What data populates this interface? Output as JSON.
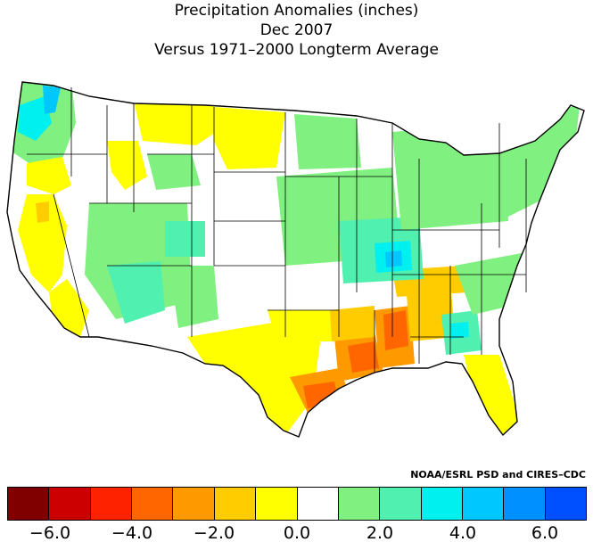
{
  "title": {
    "line1": "Precipitation Anomalies (inches)",
    "line2": "Dec 2007",
    "line3": "Versus 1971–2000 Longterm Average"
  },
  "credit": "NOAA/ESRL PSD and CIRES–CDC",
  "legend": {
    "colors": [
      "#800000",
      "#cc0000",
      "#ff2200",
      "#ff6600",
      "#ff9900",
      "#ffcc00",
      "#ffff00",
      "#ffffff",
      "#80f080",
      "#50f0b0",
      "#00f0f0",
      "#00c8ff",
      "#0090ff",
      "#0050ff"
    ],
    "ticks": [
      "−6.0",
      "−4.0",
      "−2.0",
      "0.0",
      "2.0",
      "4.0",
      "6.0"
    ]
  },
  "map": {
    "region": "Contiguous United States climate divisions",
    "colors": {
      "wet_light": "#80f080",
      "wet_medium": "#50f0b0",
      "wet_high": "#00f0f0",
      "wet_very_high": "#00c8ff",
      "dry_slight": "#ffff00",
      "dry_moderate": "#ffcc00",
      "dry_strong": "#ff9900",
      "dry_very_strong": "#ff6600",
      "near_normal": "#ffffff"
    }
  }
}
